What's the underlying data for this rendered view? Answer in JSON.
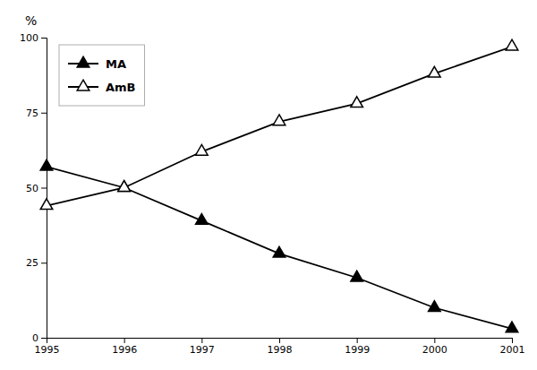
{
  "chart_data": {
    "type": "line",
    "x": [
      1995,
      1996,
      1997,
      1998,
      1999,
      2000,
      2001
    ],
    "xlim": [
      1995,
      2001
    ],
    "xticks": [
      1995,
      1996,
      1997,
      1998,
      1999,
      2000,
      2001
    ],
    "ylim": [
      0,
      100
    ],
    "yticks": [
      0,
      25,
      50,
      75,
      100
    ],
    "y_label": "%",
    "grid": false,
    "legend": "upper left",
    "series": [
      {
        "name": "MA",
        "color": "#000000",
        "marker": "triangle",
        "values": [
          57,
          50,
          39,
          28,
          20,
          10,
          3
        ]
      },
      {
        "name": "AmB",
        "color": "#000000",
        "marker": "triangle-open",
        "values": [
          44,
          50,
          62,
          72,
          78,
          88,
          97
        ]
      }
    ]
  }
}
